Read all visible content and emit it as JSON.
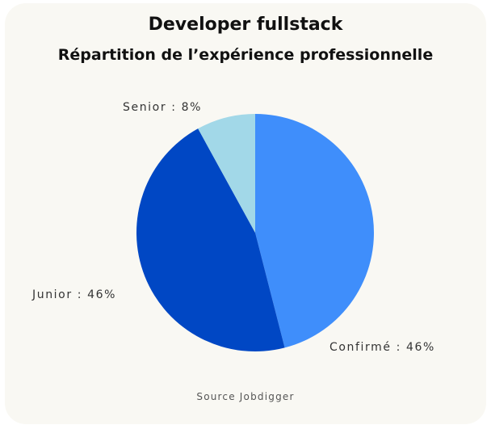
{
  "chart_data": {
    "type": "pie",
    "title": "Developer fullstack",
    "subtitle": "Répartition de l’expérience professionnelle",
    "slices": [
      {
        "name": "Confirmé",
        "value": 46,
        "label": "Confirmé : 46%",
        "color": "#3f8efb"
      },
      {
        "name": "Junior",
        "value": 46,
        "label": "Junior : 46%",
        "color": "#0047c4"
      },
      {
        "name": "Senior",
        "value": 8,
        "label": "Senior : 8%",
        "color": "#a2d8e8"
      }
    ],
    "legend": "none"
  },
  "footer": {
    "source": "Source Jobdigger"
  }
}
